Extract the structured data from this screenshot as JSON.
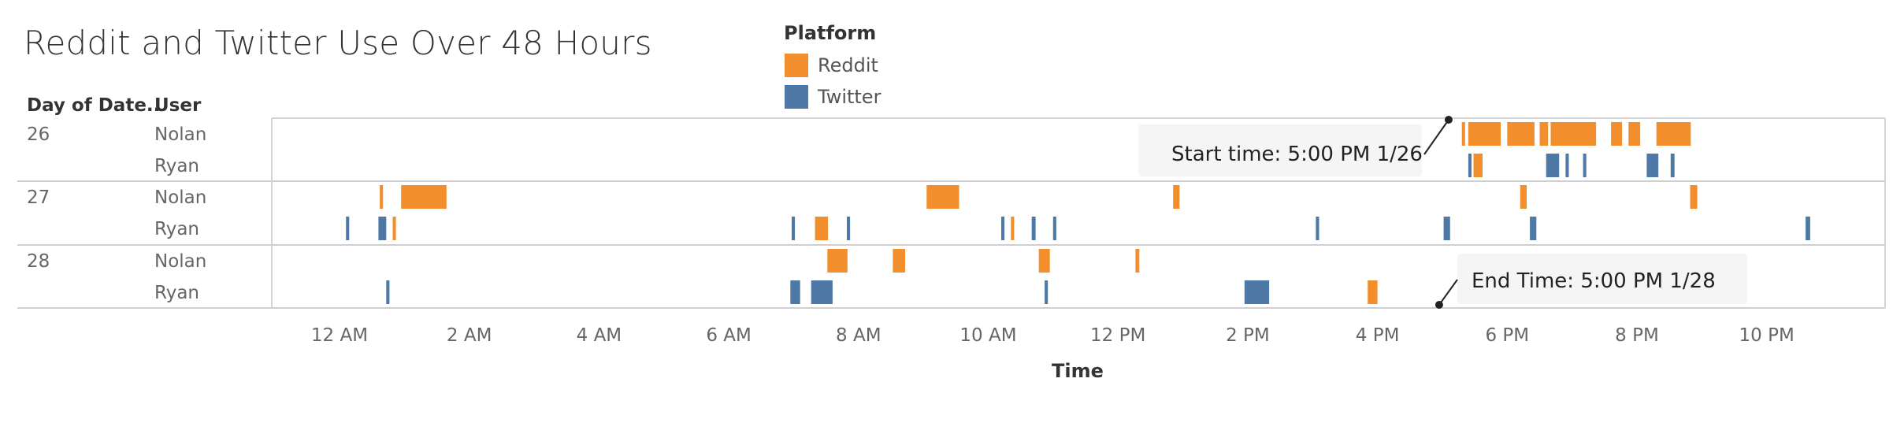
{
  "chart_data": {
    "type": "gantt",
    "title": "Reddit and Twitter Use Over 48 Hours",
    "xlabel": "Time",
    "row_headers": [
      "Day of Date..",
      "User"
    ],
    "legend": {
      "title": "Platform",
      "entries": [
        {
          "name": "Reddit",
          "color": "#f28e2b"
        },
        {
          "name": "Twitter",
          "color": "#4e79a7"
        }
      ]
    },
    "x_range_hours": [
      -1.1,
      23.7
    ],
    "x_ticks": [
      {
        "hour": 0,
        "label": "12 AM"
      },
      {
        "hour": 2,
        "label": "2 AM"
      },
      {
        "hour": 4,
        "label": "4 AM"
      },
      {
        "hour": 6,
        "label": "6 AM"
      },
      {
        "hour": 8,
        "label": "8 AM"
      },
      {
        "hour": 10,
        "label": "10 AM"
      },
      {
        "hour": 12,
        "label": "12 PM"
      },
      {
        "hour": 14,
        "label": "2 PM"
      },
      {
        "hour": 16,
        "label": "4 PM"
      },
      {
        "hour": 18,
        "label": "6 PM"
      },
      {
        "hour": 20,
        "label": "8 PM"
      },
      {
        "hour": 22,
        "label": "10 PM"
      }
    ],
    "days": [
      {
        "day": "26",
        "users": [
          {
            "user": "Nolan",
            "platform": "Reddit",
            "sessions": [
              [
                17.3,
                17.35
              ],
              [
                17.4,
                17.9
              ],
              [
                18.0,
                18.42
              ],
              [
                18.5,
                18.63
              ],
              [
                18.67,
                19.37
              ],
              [
                19.6,
                19.77
              ],
              [
                19.87,
                20.05
              ],
              [
                20.3,
                20.83
              ]
            ]
          },
          {
            "user": "Ryan",
            "platform": "Twitter",
            "sessions": [
              [
                17.4,
                17.45
              ],
              [
                18.6,
                18.8
              ],
              [
                18.9,
                18.95
              ],
              [
                19.17,
                19.22
              ],
              [
                20.15,
                20.33
              ],
              [
                20.52,
                20.58
              ]
            ]
          },
          {
            "user": "Ryan",
            "platform": "Reddit",
            "sessions": [
              [
                17.48,
                17.62
              ]
            ]
          }
        ]
      },
      {
        "day": "27",
        "users": [
          {
            "user": "Nolan",
            "platform": "Reddit",
            "sessions": [
              [
                0.62,
                0.67
              ],
              [
                0.95,
                1.65
              ],
              [
                9.05,
                9.55
              ],
              [
                12.85,
                12.95
              ],
              [
                18.2,
                18.3
              ],
              [
                20.82,
                20.93
              ]
            ]
          },
          {
            "user": "Ryan",
            "platform": "Twitter",
            "sessions": [
              [
                0.1,
                0.15
              ],
              [
                0.6,
                0.72
              ],
              [
                6.97,
                7.02
              ],
              [
                7.82,
                7.87
              ],
              [
                10.2,
                10.25
              ],
              [
                10.67,
                10.73
              ],
              [
                11.0,
                11.05
              ],
              [
                15.05,
                15.1
              ],
              [
                17.02,
                17.12
              ],
              [
                18.35,
                18.45
              ],
              [
                22.6,
                22.67
              ]
            ]
          },
          {
            "user": "Ryan",
            "platform": "Reddit",
            "sessions": [
              [
                0.82,
                0.87
              ],
              [
                7.33,
                7.53
              ],
              [
                10.35,
                10.4
              ]
            ]
          }
        ]
      },
      {
        "day": "28",
        "users": [
          {
            "user": "Nolan",
            "platform": "Reddit",
            "sessions": [
              [
                7.52,
                7.83
              ],
              [
                8.53,
                8.72
              ],
              [
                10.78,
                10.95
              ],
              [
                12.27,
                12.33
              ]
            ]
          },
          {
            "user": "Ryan",
            "platform": "Twitter",
            "sessions": [
              [
                0.72,
                0.77
              ],
              [
                6.95,
                7.1
              ],
              [
                7.27,
                7.6
              ],
              [
                10.87,
                10.92
              ],
              [
                13.95,
                14.33
              ]
            ]
          },
          {
            "user": "Ryan",
            "platform": "Reddit",
            "sessions": [
              [
                15.85,
                16.0
              ]
            ]
          }
        ]
      }
    ],
    "annotations": [
      {
        "text": "Start time: 5:00 PM 1/26",
        "day": "26",
        "hour": 17.0
      },
      {
        "text": "End Time: 5:00 PM 1/28",
        "day": "28",
        "hour": 17.0
      }
    ]
  }
}
